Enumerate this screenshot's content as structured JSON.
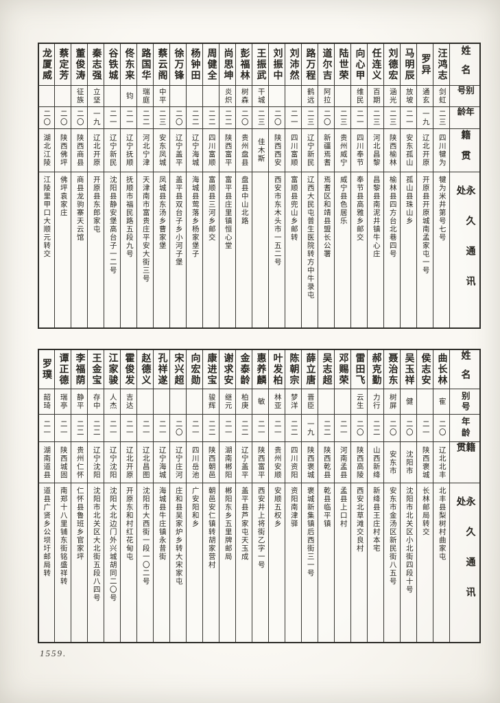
{
  "page_number": "1559.",
  "headers": {
    "name": "姓名",
    "alias": "别号",
    "age": "年龄",
    "origin": "籍贯",
    "address": "永久通讯处"
  },
  "tables": [
    {
      "entries": [
        {
          "name": "汪鸿志",
          "alias": "剑虹",
          "age": "二三",
          "origin": "四川犍为",
          "address": "犍为米井第号七号"
        },
        {
          "name": "罗异",
          "alias": "通玄",
          "age": "一九",
          "origin": "辽北开原",
          "address": "开原县开原城南孟家屯一号"
        },
        {
          "name": "马明辰",
          "alias": "放坡",
          "age": "二一",
          "origin": "安东孤山",
          "address": "孤山县珠山乡"
        },
        {
          "name": "刘德宏",
          "alias": "涵光",
          "age": "二三",
          "origin": "陕西榆林",
          "address": "榆林县四方台北巷四号"
        },
        {
          "name": "任连义",
          "alias": "百期",
          "age": "二三",
          "origin": "河北昌黎",
          "address": "昌黎县南泥井镇牛心庄"
        },
        {
          "name": "向心甲",
          "alias": "维民",
          "age": "二一",
          "origin": "四川奉节",
          "address": "奉节县高雅乡邮交"
        },
        {
          "name": "陆世荣",
          "alias": "",
          "age": "二三",
          "origin": "贵州威宁",
          "address": "威宁县色居乐"
        },
        {
          "name": "道尔吉",
          "alias": "阿拉",
          "age": "二〇",
          "origin": "新疆焉耆",
          "address": "焉耆区和靖县盟长公署"
        },
        {
          "name": "路万程",
          "alias": "鹤远",
          "age": "二三",
          "origin": "辽宁新民",
          "address": "辽西大民屯普生医院转方中牛录屯"
        },
        {
          "name": "刘沛然",
          "alias": "",
          "age": "二一",
          "origin": "四川富顺",
          "address": "富顺县兜山乡邮转"
        },
        {
          "name": "刘振中",
          "alias": "",
          "age": "二〇",
          "origin": "陕西西安",
          "address": "西安市东木头市一五二号"
        },
        {
          "name": "王振武",
          "alias": "干城",
          "age": "二三",
          "origin": "佳木斯",
          "address": ""
        },
        {
          "name": "彭福林",
          "alias": "树森",
          "age": "二〇",
          "origin": "贵州盘县",
          "address": "盘县中山北路"
        },
        {
          "name": "尚思坤",
          "alias": "炎炽",
          "age": "二二",
          "origin": "陕西富平",
          "address": "富平县庄里镇恒心堂"
        },
        {
          "name": "周健全",
          "alias": "",
          "age": "二二",
          "origin": "四川富顺",
          "address": "富顺县三河乡邮交"
        },
        {
          "name": "杨钟田",
          "alias": "",
          "age": "二二",
          "origin": "辽宁海城",
          "address": "海城县莺落乡杨家堡子"
        },
        {
          "name": "徐万锋",
          "alias": "",
          "age": "二〇",
          "origin": "辽宁盖平",
          "address": "盖平县双台子乡小河子堡"
        },
        {
          "name": "蔡云阁",
          "alias": "中平",
          "age": "二三",
          "origin": "安东凤城",
          "address": "凤城县东汤乡曹家堡"
        },
        {
          "name": "路国华",
          "alias": "瑞庭",
          "age": "二二",
          "origin": "河北宁津",
          "address": "天津南市富贵庄平安大街三号"
        },
        {
          "name": "佟东来",
          "alias": "钧",
          "age": "二一",
          "origin": "辽宁抚顺",
          "address": "抚顺市福民路五段九号"
        },
        {
          "name": "谷铁城",
          "alias": "",
          "age": "二一",
          "origin": "辽宁新民",
          "address": "沈阳县静安堡高台子一二号"
        },
        {
          "name": "秦志强",
          "alias": "立坚",
          "age": "一九",
          "origin": "辽北开原",
          "address": "开原县东郎家屯"
        },
        {
          "name": "董俊涛",
          "alias": "征族",
          "age": "二〇",
          "origin": "陕西商县",
          "address": "商县龙驹寨天云馆"
        },
        {
          "name": "蔡定芳",
          "alias": "",
          "age": "二〇",
          "origin": "陕西佛坪",
          "address": "佛坪袁家庄"
        },
        {
          "name": "龙厦威",
          "alias": "",
          "age": "二〇",
          "origin": "湖北江陵",
          "address": "江陵里甲口大顺元转交"
        }
      ]
    },
    {
      "entries": [
        {
          "name": "曲长林",
          "alias": "寉",
          "age": "二〇",
          "origin": "辽北北丰",
          "address": "北丰县梨树村曲家屯"
        },
        {
          "name": "侯志安",
          "alias": "",
          "age": "二一",
          "origin": "陕西褒城",
          "address": "长林邮局转交"
        },
        {
          "name": "吴玉祥",
          "alias": "健",
          "age": "二〇",
          "origin": "沈阳市",
          "address": "沈阳市北关区小北街四段十号"
        },
        {
          "name": "聂治东",
          "alias": "树屏",
          "age": "二〇",
          "origin": "安东市",
          "address": "安东市金汤区新民街八五号"
        },
        {
          "name": "郝克勤",
          "alias": "力行",
          "age": "二二",
          "origin": "山西新绛",
          "address": "新绛县王庄村本宅"
        },
        {
          "name": "雷田飞",
          "alias": "云生",
          "age": "二〇",
          "origin": "陕西高陵",
          "address": "西安北草滩交良村"
        },
        {
          "name": "邓赐荣",
          "alias": "",
          "age": "二一",
          "origin": "河南孟县",
          "address": "孟县上口村"
        },
        {
          "name": "吴志超",
          "alias": "",
          "age": "二二",
          "origin": "陕西乾县",
          "address": "乾县临平镇"
        },
        {
          "name": "薛立唐",
          "alias": "晋臣",
          "age": "一九",
          "origin": "陕西褒城",
          "address": "褒城新集镇后西街三一号"
        },
        {
          "name": "陈朝宗",
          "alias": "梦洋",
          "age": "二二",
          "origin": "四川资阳",
          "address": "资阳南津驿"
        },
        {
          "name": "叶发柏",
          "alias": "林亚",
          "age": "二一",
          "origin": "贵州安顺",
          "address": "安顺五权乡"
        },
        {
          "name": "惠养麟",
          "alias": "敏",
          "age": "二一",
          "origin": "陕西富平",
          "address": "西安井上将街乙字一号"
        },
        {
          "name": "金泰龄",
          "alias": "柏庚",
          "age": "二二",
          "origin": "辽宁盖平",
          "address": "盖平县芦家屯天玉成"
        },
        {
          "name": "谢求安",
          "alias": "继元",
          "age": "二一",
          "origin": "湖南郴阳",
          "address": "郴阳东乡五里牌邮局"
        },
        {
          "name": "康进宝",
          "alias": "骏辉",
          "age": "二二",
          "origin": "陕西朝邑",
          "address": "朝邑安仁镇转胡家营村"
        },
        {
          "name": "向宏勋",
          "alias": "",
          "age": "二一",
          "origin": "四川岳池",
          "address": "广安阳和乡"
        },
        {
          "name": "宋兴超",
          "alias": "",
          "age": "二〇",
          "origin": "辽宁庄河",
          "address": "庄和县吴家炉乡转大宋家屯"
        },
        {
          "name": "孔祥遂",
          "alias": "",
          "age": "二一",
          "origin": "辽宁海城",
          "address": "海城县牛庄镇永昔街"
        },
        {
          "name": "赵德义",
          "alias": "",
          "age": "二一",
          "origin": "辽北昌图",
          "address": "沈阳市大西街一段一〇二号"
        },
        {
          "name": "霍俊发",
          "alias": "吉达",
          "age": "二一",
          "origin": "辽北开原",
          "address": "开原东和村红花甸屯"
        },
        {
          "name": "江家骏",
          "alias": "人杰",
          "age": "二一",
          "origin": "辽宁沈阳",
          "address": "沈阳大北边门外兴城胡同二〇号"
        },
        {
          "name": "王金宝",
          "alias": "存中",
          "age": "二二",
          "origin": "辽宁沈阳",
          "address": "沈阳市北关区大北街五段八四号"
        },
        {
          "name": "李福荫",
          "alias": "静平",
          "age": "二二",
          "origin": "贵州仁怀",
          "address": "仁怀县鲁班乡官家坪"
        },
        {
          "name": "谭正德",
          "alias": "瑞亭",
          "age": "二一",
          "origin": "陕西城固",
          "address": "南郑十八里铺东街铭盛祥转"
        },
        {
          "name": "罗璞",
          "alias": "韶琦",
          "age": "二一",
          "origin": "湖南道县",
          "address": "道县广贤乡公坝圩邮局转"
        }
      ]
    }
  ]
}
